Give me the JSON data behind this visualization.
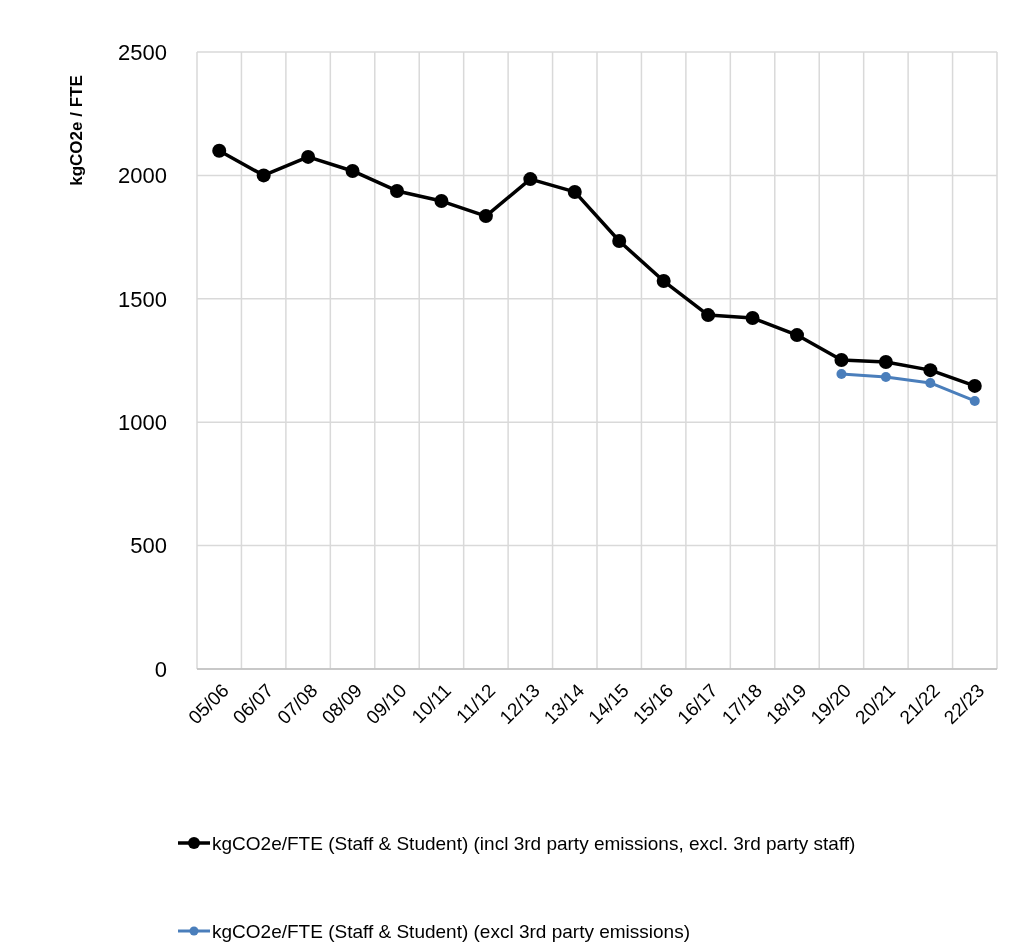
{
  "chart_data": {
    "type": "line",
    "ylabel": "kgCO2e / FTE",
    "categories": [
      "05/06",
      "06/07",
      "07/08",
      "08/09",
      "09/10",
      "10/11",
      "11/12",
      "12/13",
      "13/14",
      "14/15",
      "15/16",
      "16/17",
      "17/18",
      "18/19",
      "19/20",
      "20/21",
      "21/22",
      "22/23"
    ],
    "series": [
      {
        "name": "kgCO2e/FTE (Staff & Student) (incl 3rd party emissions, excl. 3rd party staff)",
        "color": "#000000",
        "values": [
          2100,
          2000,
          2075,
          2018,
          1937,
          1896,
          1835,
          1985,
          1933,
          1734,
          1572,
          1434,
          1422,
          1353,
          1252,
          1244,
          1211,
          1147
        ]
      },
      {
        "name": "kgCO2e/FTE (Staff & Student) (excl 3rd party emissions)",
        "color": "#4a7ebb",
        "values": [
          null,
          null,
          null,
          null,
          null,
          null,
          null,
          null,
          null,
          null,
          null,
          null,
          null,
          null,
          1195,
          1183,
          1159,
          1086
        ]
      }
    ],
    "ylim": [
      0,
      2500
    ],
    "yticks": [
      0,
      500,
      1000,
      1500,
      2000,
      2500
    ],
    "grid": true,
    "legend": "bottom",
    "marker": "circle",
    "line_style": "solid"
  }
}
